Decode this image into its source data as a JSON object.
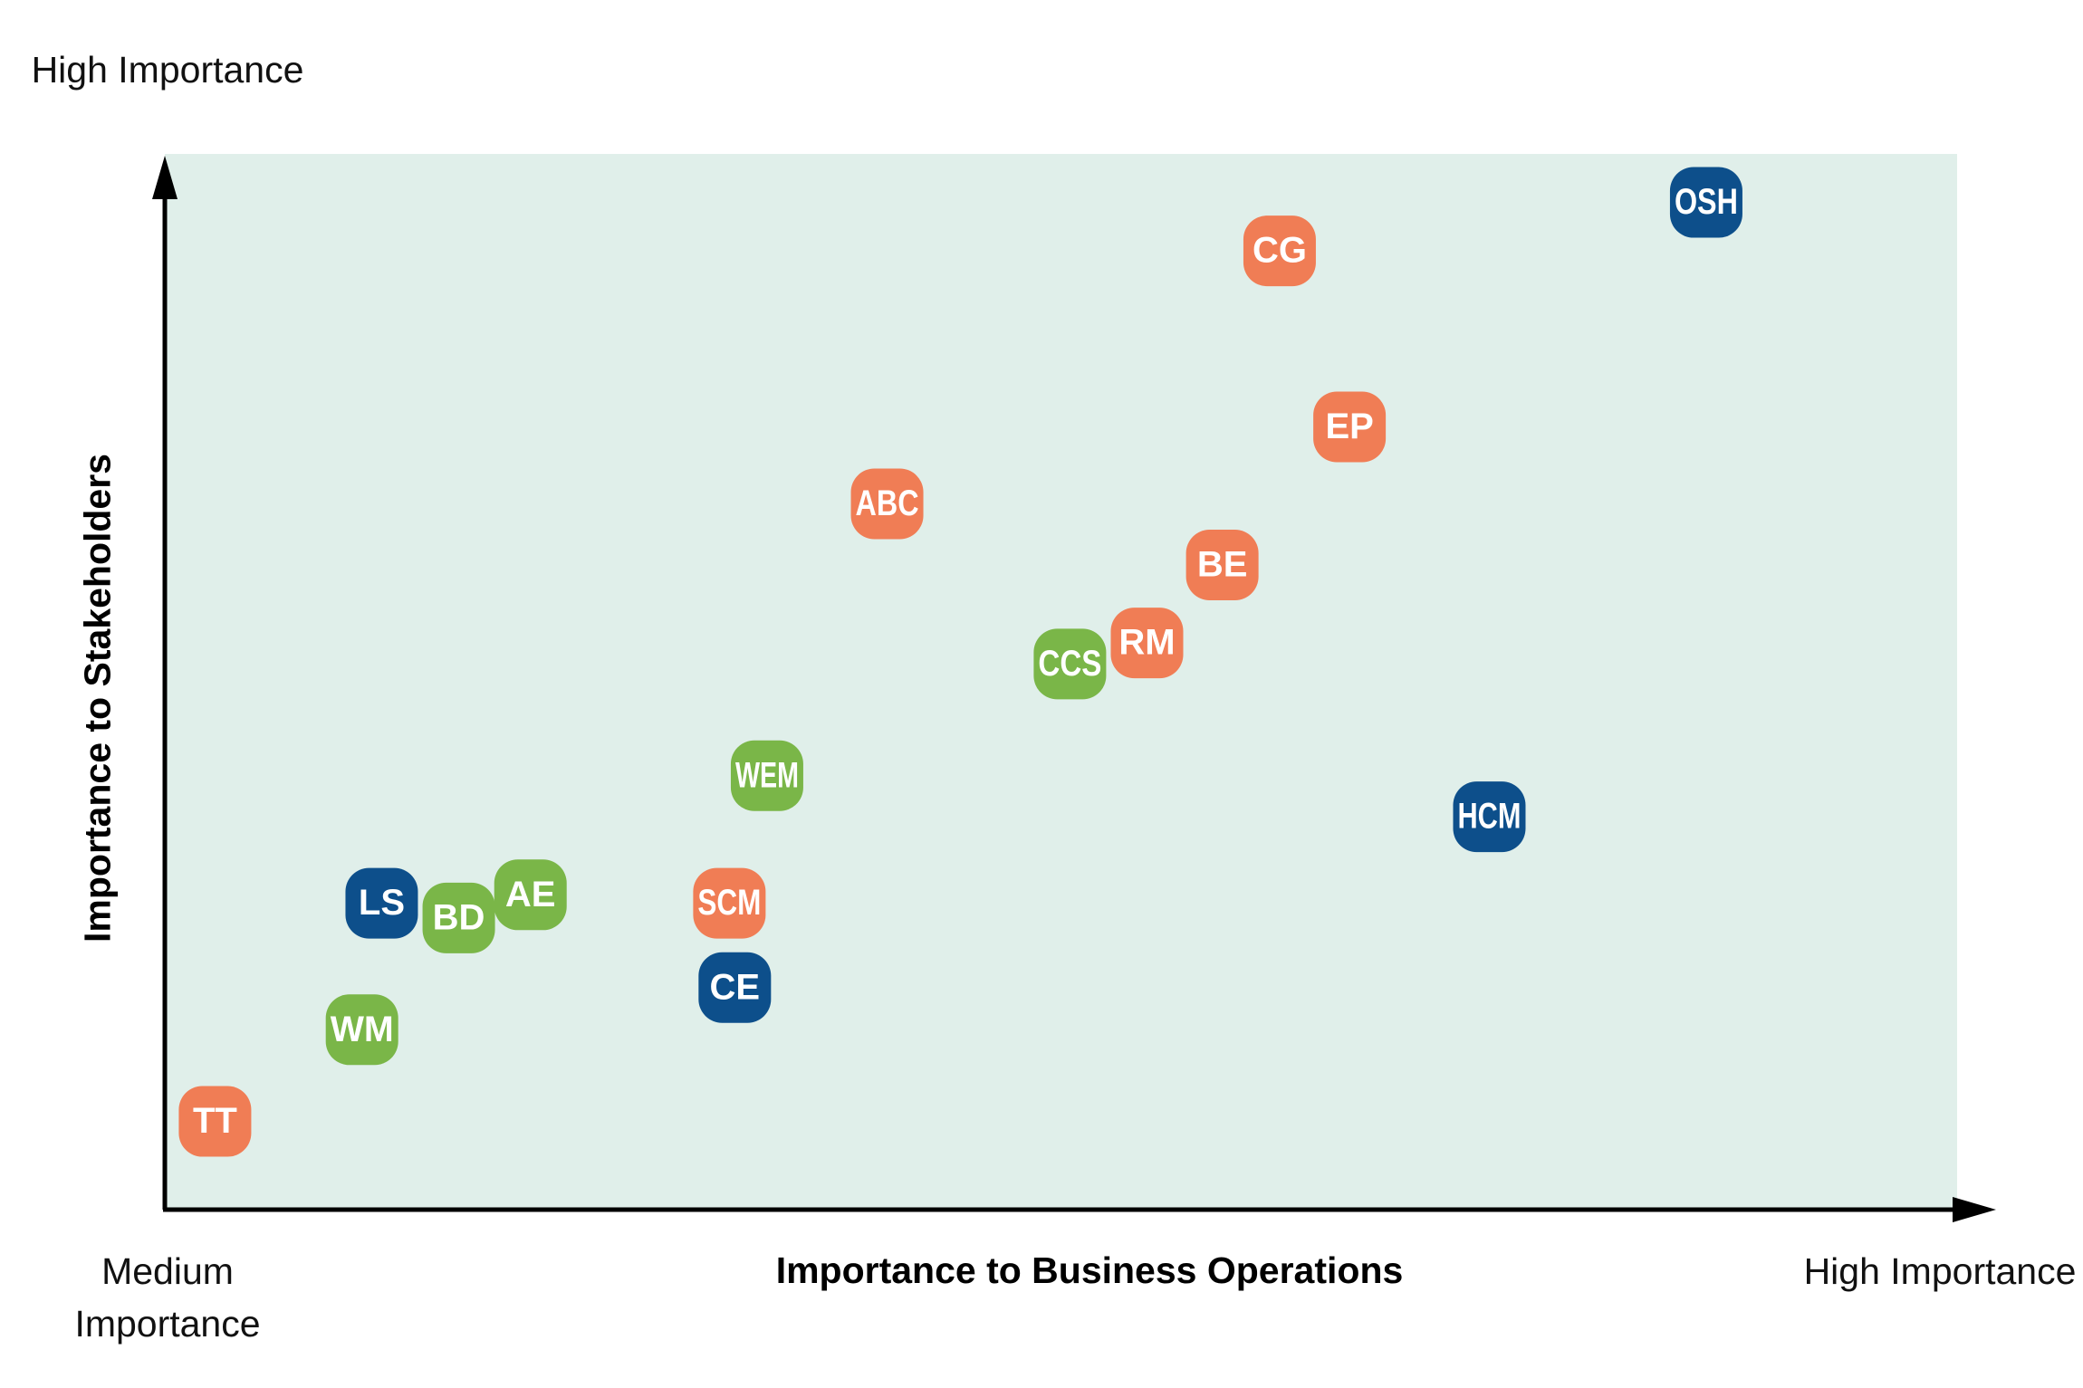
{
  "chart_data": {
    "type": "scatter",
    "x_label": "Importance to Business Operations",
    "y_label": "Importance to Stakeholders",
    "y_high_label": "High Importance",
    "x_low_label": "Medium Importance",
    "x_high_label": "High Importance",
    "xlim": [
      0,
      100
    ],
    "ylim": [
      0,
      100
    ],
    "background": "#e0efea",
    "points": [
      {
        "label": "OSH",
        "x": 86.0,
        "y": 95.4,
        "color": "#0d4f8b"
      },
      {
        "label": "CG",
        "x": 62.2,
        "y": 90.8,
        "color": "#f07d55"
      },
      {
        "label": "EP",
        "x": 66.1,
        "y": 74.1,
        "color": "#f07d55"
      },
      {
        "label": "ABC",
        "x": 40.3,
        "y": 66.8,
        "color": "#f07d55"
      },
      {
        "label": "BE",
        "x": 59.0,
        "y": 61.0,
        "color": "#f07d55"
      },
      {
        "label": "RM",
        "x": 54.8,
        "y": 53.6,
        "color": "#f07d55"
      },
      {
        "label": "CCS",
        "x": 50.5,
        "y": 51.6,
        "color": "#7ab648"
      },
      {
        "label": "WEM",
        "x": 33.6,
        "y": 41.0,
        "color": "#7ab648"
      },
      {
        "label": "HCM",
        "x": 73.9,
        "y": 37.1,
        "color": "#0d4f8b"
      },
      {
        "label": "LS",
        "x": 12.1,
        "y": 28.9,
        "color": "#0d4f8b"
      },
      {
        "label": "BD",
        "x": 16.4,
        "y": 27.5,
        "color": "#7ab648"
      },
      {
        "label": "AE",
        "x": 20.4,
        "y": 29.7,
        "color": "#7ab648"
      },
      {
        "label": "SCM",
        "x": 31.5,
        "y": 28.9,
        "color": "#f07d55"
      },
      {
        "label": "CE",
        "x": 31.8,
        "y": 20.9,
        "color": "#0d4f8b"
      },
      {
        "label": "WM",
        "x": 11.0,
        "y": 16.9,
        "color": "#7ab648"
      },
      {
        "label": "TT",
        "x": 2.8,
        "y": 8.2,
        "color": "#f07d55"
      }
    ]
  }
}
